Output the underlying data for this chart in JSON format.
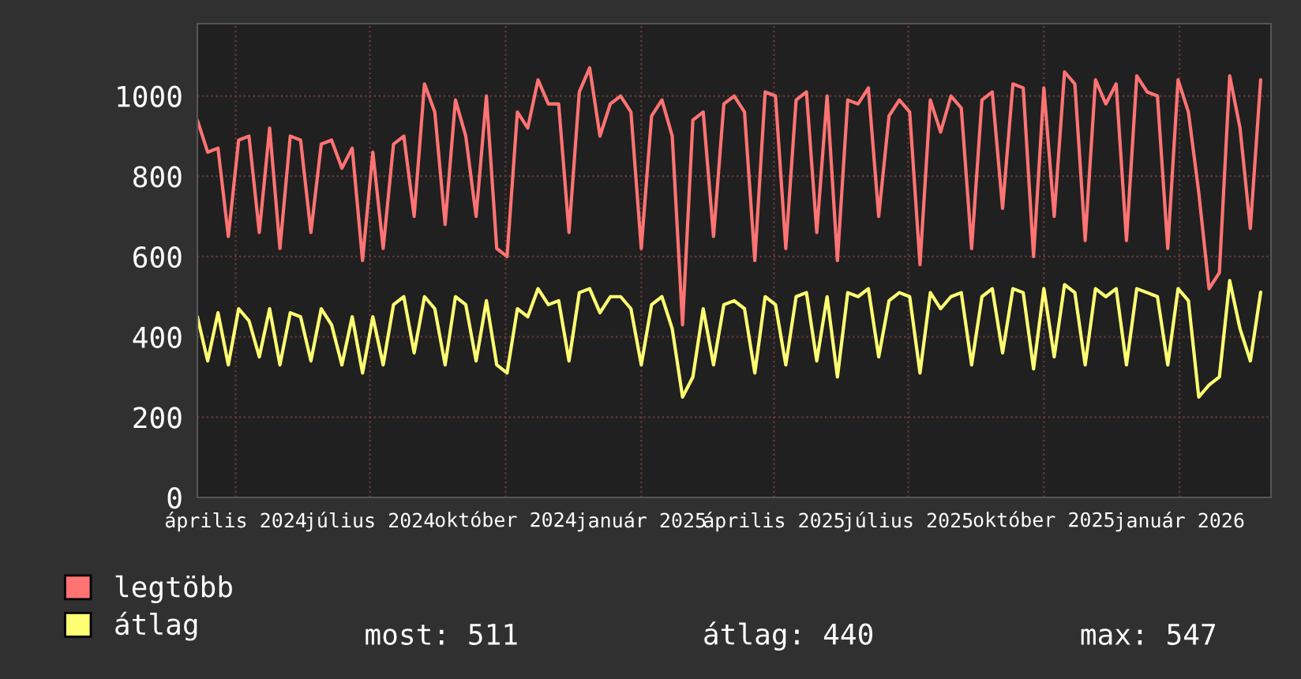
{
  "chart_data": {
    "type": "line",
    "x": [
      "2024-03-06",
      "2024-03-13",
      "2024-03-20",
      "2024-03-27",
      "2024-04-03",
      "2024-04-10",
      "2024-04-17",
      "2024-04-24",
      "2024-05-01",
      "2024-05-08",
      "2024-05-15",
      "2024-05-22",
      "2024-05-29",
      "2024-06-05",
      "2024-06-12",
      "2024-06-19",
      "2024-06-26",
      "2024-07-03",
      "2024-07-10",
      "2024-07-17",
      "2024-07-24",
      "2024-07-31",
      "2024-08-07",
      "2024-08-14",
      "2024-08-21",
      "2024-08-28",
      "2024-09-04",
      "2024-09-11",
      "2024-09-18",
      "2024-09-25",
      "2024-10-02",
      "2024-10-09",
      "2024-10-16",
      "2024-10-23",
      "2024-10-30",
      "2024-11-06",
      "2024-11-13",
      "2024-11-20",
      "2024-11-27",
      "2024-12-04",
      "2024-12-11",
      "2024-12-18",
      "2024-12-25",
      "2025-01-01",
      "2025-01-08",
      "2025-01-15",
      "2025-01-22",
      "2025-01-29",
      "2025-02-05",
      "2025-02-12",
      "2025-02-19",
      "2025-02-26",
      "2025-03-05",
      "2025-03-12",
      "2025-03-19",
      "2025-03-26",
      "2025-04-02",
      "2025-04-09",
      "2025-04-16",
      "2025-04-23",
      "2025-04-30",
      "2025-05-07",
      "2025-05-14",
      "2025-05-21",
      "2025-05-28",
      "2025-06-04",
      "2025-06-11",
      "2025-06-18",
      "2025-06-25",
      "2025-07-02",
      "2025-07-09",
      "2025-07-16",
      "2025-07-23",
      "2025-07-30",
      "2025-08-06",
      "2025-08-13",
      "2025-08-20",
      "2025-08-27",
      "2025-09-03",
      "2025-09-10",
      "2025-09-17",
      "2025-09-24",
      "2025-10-01",
      "2025-10-08",
      "2025-10-15",
      "2025-10-22",
      "2025-10-29",
      "2025-11-05",
      "2025-11-12",
      "2025-11-19",
      "2025-11-26",
      "2025-12-03",
      "2025-12-10",
      "2025-12-17",
      "2025-12-24",
      "2025-12-31",
      "2026-01-07",
      "2026-01-14",
      "2026-01-21",
      "2026-01-28",
      "2026-02-04",
      "2026-02-11",
      "2026-02-18",
      "2026-02-25"
    ],
    "series": [
      {
        "name": "legtöbb",
        "color": "#ff7373",
        "values": [
          940,
          860,
          870,
          650,
          890,
          900,
          660,
          920,
          620,
          900,
          890,
          660,
          880,
          890,
          820,
          870,
          590,
          860,
          620,
          880,
          900,
          700,
          1030,
          960,
          680,
          990,
          900,
          700,
          1000,
          620,
          600,
          960,
          920,
          1040,
          980,
          980,
          660,
          1010,
          1070,
          900,
          980,
          1000,
          960,
          620,
          950,
          990,
          900,
          430,
          940,
          960,
          650,
          980,
          1000,
          960,
          590,
          1010,
          1000,
          620,
          990,
          1010,
          660,
          1000,
          590,
          990,
          980,
          1020,
          700,
          950,
          990,
          960,
          580,
          990,
          910,
          1000,
          970,
          620,
          990,
          1010,
          720,
          1030,
          1020,
          600,
          1020,
          700,
          1060,
          1030,
          640,
          1040,
          980,
          1030,
          640,
          1050,
          1010,
          1000,
          620,
          1040,
          960,
          760,
          520,
          560,
          1050,
          920,
          670,
          1040
        ]
      },
      {
        "name": "átlag",
        "color": "#ffff73",
        "values": [
          450,
          340,
          460,
          330,
          470,
          440,
          350,
          470,
          330,
          460,
          450,
          340,
          470,
          430,
          330,
          450,
          310,
          450,
          330,
          480,
          500,
          360,
          500,
          470,
          330,
          500,
          480,
          340,
          490,
          330,
          310,
          470,
          450,
          520,
          480,
          490,
          340,
          510,
          520,
          460,
          500,
          500,
          470,
          330,
          480,
          500,
          420,
          250,
          300,
          470,
          330,
          480,
          490,
          470,
          310,
          500,
          480,
          330,
          500,
          510,
          340,
          500,
          300,
          510,
          500,
          520,
          350,
          490,
          510,
          500,
          310,
          510,
          470,
          500,
          510,
          330,
          500,
          520,
          360,
          520,
          510,
          320,
          520,
          350,
          530,
          510,
          330,
          520,
          500,
          520,
          330,
          520,
          510,
          500,
          330,
          520,
          490,
          250,
          280,
          300,
          540,
          420,
          340,
          511
        ]
      }
    ],
    "xlim": [
      "2024-03-06",
      "2026-03-04"
    ],
    "xticks": [
      {
        "value": "2024-04-01",
        "label": "április 2024"
      },
      {
        "value": "2024-07-01",
        "label": "július 2024"
      },
      {
        "value": "2024-10-01",
        "label": "október 2024"
      },
      {
        "value": "2025-01-01",
        "label": "január 2025"
      },
      {
        "value": "2025-04-01",
        "label": "április 2025"
      },
      {
        "value": "2025-07-01",
        "label": "július 2025"
      },
      {
        "value": "2025-10-01",
        "label": "október 2025"
      },
      {
        "value": "2026-01-01",
        "label": "január 2026"
      }
    ],
    "ylim": [
      0,
      1180
    ],
    "yticks": [
      0,
      200,
      400,
      600,
      800,
      1000
    ],
    "grid": true,
    "legend": "bottom left",
    "annotations": [
      "most: 511",
      "átlag: 440",
      "max: 547"
    ]
  }
}
